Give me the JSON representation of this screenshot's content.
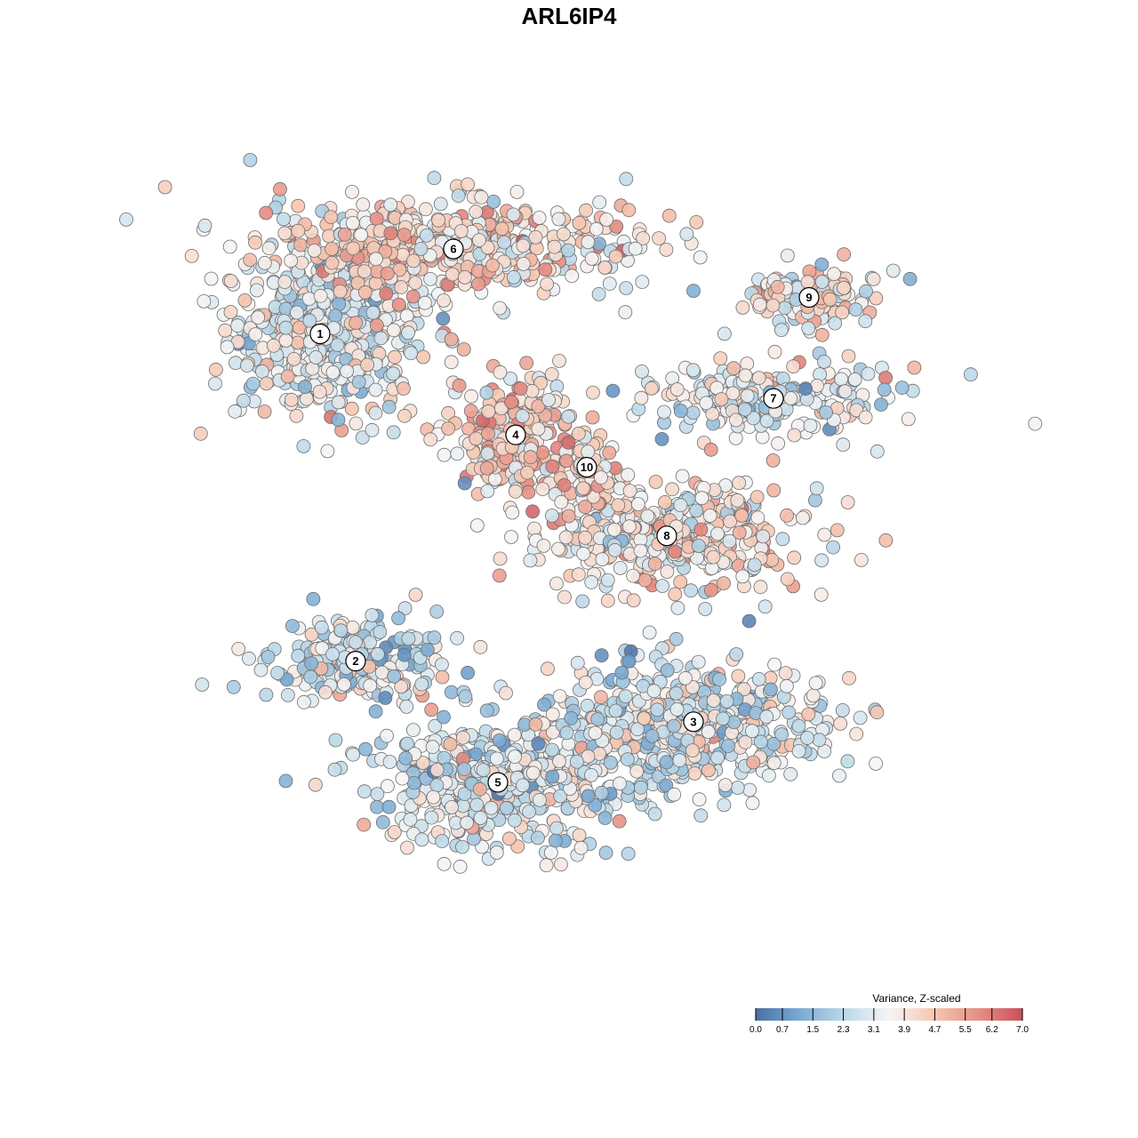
{
  "chart_data": {
    "type": "scatter",
    "title": "ARL6IP4",
    "xlabel": "",
    "ylabel": "",
    "grid": false,
    "color_scale": {
      "title": "Variance, Z-scaled",
      "min": 0.0,
      "max": 7.0,
      "ticks": [
        "0.0",
        "0.7",
        "1.5",
        "2.3",
        "3.1",
        "3.9",
        "4.7",
        "5.5",
        "6.2",
        "7.0"
      ],
      "tick_values": [
        0.0,
        0.7,
        1.5,
        2.3,
        3.1,
        3.9,
        4.7,
        5.5,
        6.2,
        7.0
      ],
      "colors": [
        "#4a6fa5",
        "#74a6d0",
        "#bcd8e8",
        "#f5f5f5",
        "#f6c6b0",
        "#e58a80",
        "#c8505b"
      ],
      "placement": "bottom-right"
    },
    "clusters": [
      {
        "label": "1",
        "x": -28.0,
        "y": 28.0,
        "value": 3.2,
        "spread_x": 7.5,
        "spread_y": 7.0
      },
      {
        "label": "2",
        "x": -24.0,
        "y": -12.5,
        "value": 2.8,
        "spread_x": 7.0,
        "spread_y": 3.5
      },
      {
        "label": "3",
        "x": 14.0,
        "y": -20.0,
        "value": 2.9,
        "spread_x": 10.0,
        "spread_y": 5.5
      },
      {
        "label": "4",
        "x": -6.0,
        "y": 15.5,
        "value": 4.3,
        "spread_x": 5.0,
        "spread_y": 5.5
      },
      {
        "label": "5",
        "x": -8.0,
        "y": -27.5,
        "value": 3.0,
        "spread_x": 9.0,
        "spread_y": 5.5
      },
      {
        "label": "6",
        "x": -13.0,
        "y": 38.5,
        "value": 4.0,
        "spread_x": 14.0,
        "spread_y": 4.0
      },
      {
        "label": "7",
        "x": 23.0,
        "y": 20.0,
        "value": 3.1,
        "spread_x": 9.0,
        "spread_y": 3.0
      },
      {
        "label": "8",
        "x": 11.0,
        "y": 3.0,
        "value": 3.9,
        "spread_x": 10.0,
        "spread_y": 4.5
      },
      {
        "label": "9",
        "x": 27.0,
        "y": 32.5,
        "value": 3.6,
        "spread_x": 5.5,
        "spread_y": 2.5
      },
      {
        "label": "10",
        "x": 2.0,
        "y": 11.5,
        "value": 4.2,
        "spread_x": 2.0,
        "spread_y": 3.0
      }
    ],
    "xlim": [
      -50,
      50
    ],
    "ylim": [
      -55,
      55
    ],
    "legend": "bottom-right"
  }
}
